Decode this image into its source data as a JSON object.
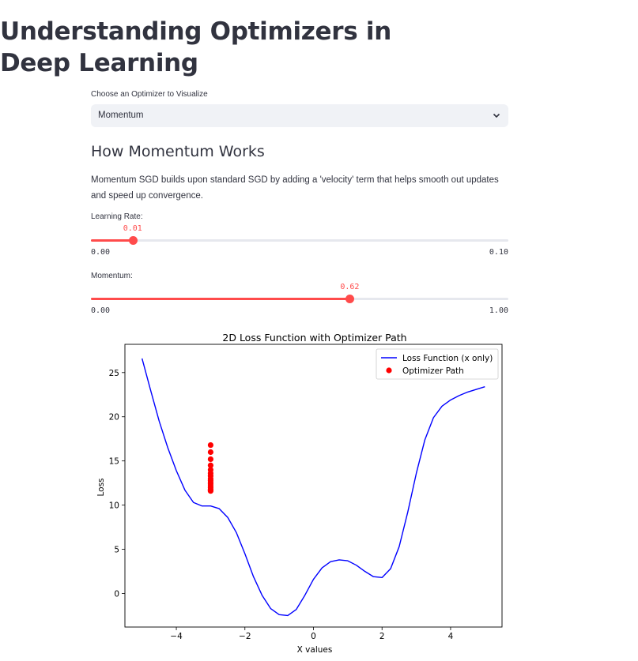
{
  "title": "Understanding Optimizers in Deep Learning",
  "optimizer_select": {
    "label": "Choose an Optimizer to Visualize",
    "value": "Momentum"
  },
  "section": {
    "heading": "How Momentum Works",
    "description": "Momentum SGD builds upon standard SGD by adding a 'velocity' term that helps smooth out updates and speed up convergence."
  },
  "sliders": [
    {
      "label": "Learning Rate:",
      "value_text": "0.01",
      "min_text": "0.00",
      "max_text": "0.10",
      "min": 0.0,
      "max": 0.1,
      "value": 0.01
    },
    {
      "label": "Momentum:",
      "value_text": "0.62",
      "min_text": "0.00",
      "max_text": "1.00",
      "min": 0.0,
      "max": 1.0,
      "value": 0.62
    }
  ],
  "colors": {
    "accent": "#ff4b4b",
    "loss_line": "#0000ff",
    "path_points": "#ff0000"
  },
  "chart_data": {
    "type": "line",
    "title": "2D Loss Function with Optimizer Path",
    "xlabel": "X values",
    "ylabel": "Loss",
    "xlim": [
      -5.5,
      5.5
    ],
    "ylim": [
      -3.8,
      28.2
    ],
    "xticks": [
      -4,
      -2,
      0,
      2,
      4
    ],
    "yticks": [
      0,
      5,
      10,
      15,
      20,
      25
    ],
    "legend": {
      "placement": "upper right",
      "entries": [
        "Loss Function (x only)",
        "Optimizer Path"
      ]
    },
    "series": [
      {
        "name": "Loss Function (x only)",
        "kind": "line",
        "x": [
          -5.0,
          -4.75,
          -4.5,
          -4.25,
          -4.0,
          -3.75,
          -3.5,
          -3.25,
          -3.0,
          -2.75,
          -2.5,
          -2.25,
          -2.0,
          -1.75,
          -1.5,
          -1.25,
          -1.0,
          -0.75,
          -0.5,
          -0.25,
          0.0,
          0.25,
          0.5,
          0.75,
          1.0,
          1.25,
          1.5,
          1.75,
          2.0,
          2.25,
          2.5,
          2.75,
          3.0,
          3.25,
          3.5,
          3.75,
          4.0,
          4.25,
          4.5,
          4.75,
          5.0
        ],
        "y": [
          26.6,
          23.0,
          19.5,
          16.5,
          13.9,
          11.7,
          10.3,
          9.9,
          9.9,
          9.6,
          8.6,
          6.9,
          4.5,
          1.9,
          -0.2,
          -1.7,
          -2.4,
          -2.5,
          -1.8,
          -0.2,
          1.6,
          2.9,
          3.6,
          3.8,
          3.7,
          3.2,
          2.5,
          1.9,
          1.8,
          2.8,
          5.3,
          9.2,
          13.6,
          17.4,
          19.9,
          21.2,
          21.9,
          22.4,
          22.8,
          23.1,
          23.4
        ]
      },
      {
        "name": "Optimizer Path",
        "kind": "scatter",
        "x": [
          -3.0,
          -3.0,
          -3.0,
          -3.0,
          -3.0,
          -3.0,
          -3.0,
          -3.0,
          -3.0,
          -3.0,
          -3.0,
          -3.0,
          -3.0,
          -3.0,
          -3.0,
          -3.0
        ],
        "y": [
          16.8,
          16.0,
          15.2,
          14.5,
          14.0,
          13.6,
          13.3,
          13.0,
          12.8,
          12.6,
          12.4,
          12.2,
          12.0,
          11.8,
          11.7,
          11.6
        ]
      }
    ]
  }
}
